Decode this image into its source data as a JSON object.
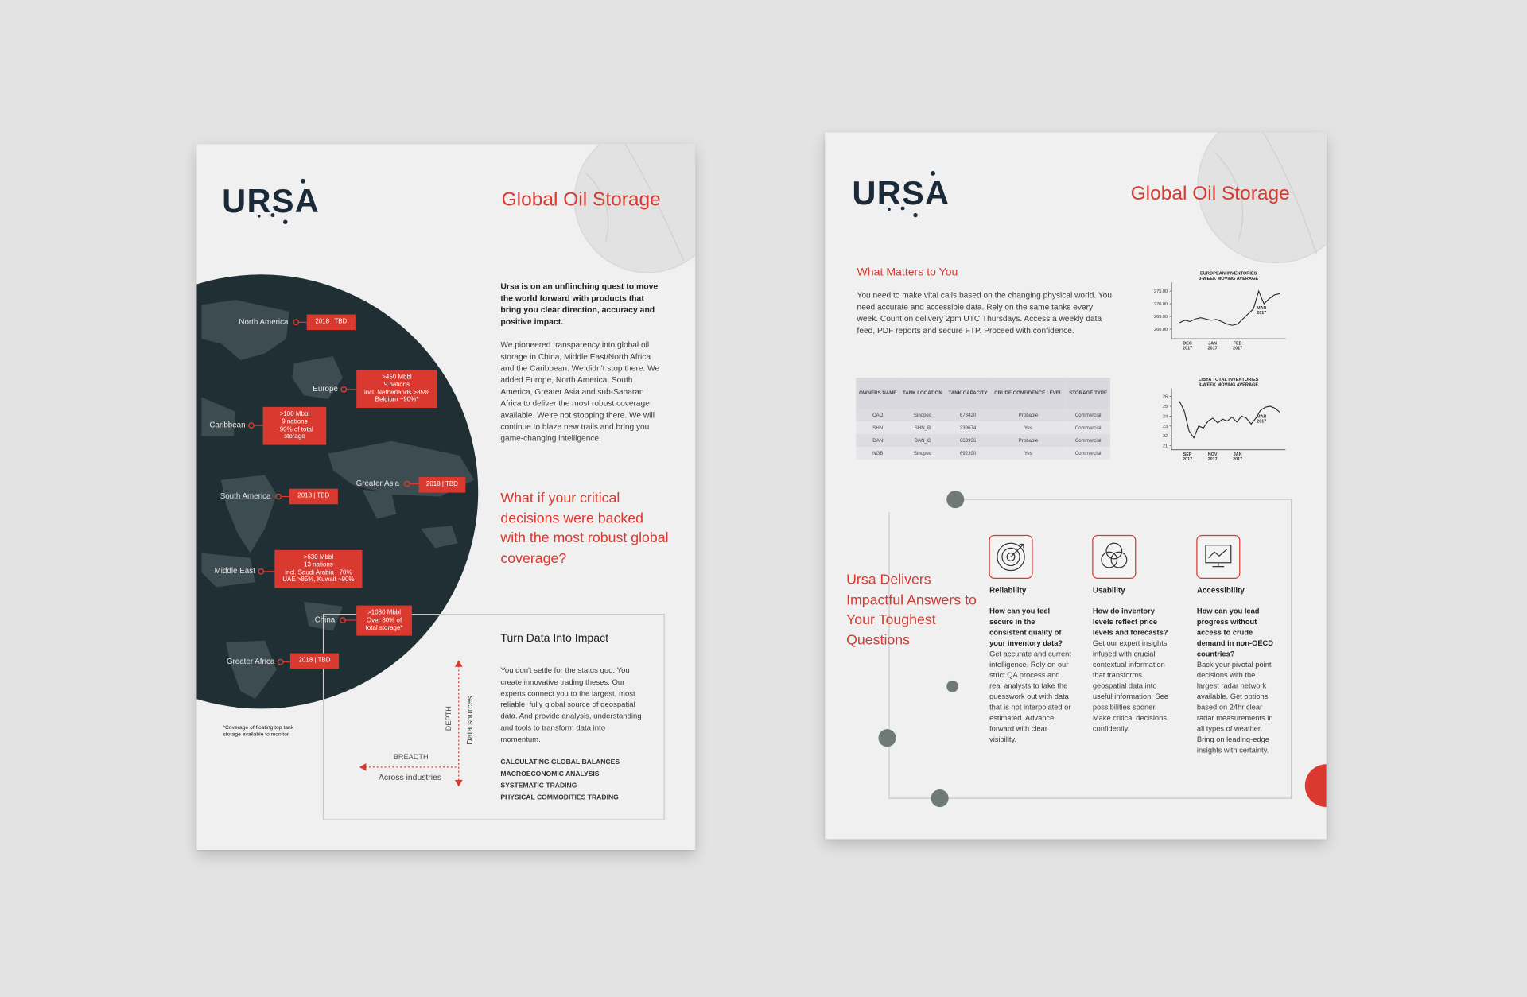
{
  "left_page": {
    "logo": "URSA",
    "title": "Global Oil Storage",
    "regions": [
      {
        "name": "North America",
        "details": [
          "2018 | TBD"
        ]
      },
      {
        "name": "Europe",
        "details": [
          ">450 Mbbl",
          "9 nations",
          "incl. Netherlands >85%",
          "Belgium ~90%*"
        ]
      },
      {
        "name": "Caribbean",
        "details": [
          ">100 Mbbl",
          "9 nations",
          "~90% of total",
          "storage"
        ]
      },
      {
        "name": "Greater Asia",
        "details": [
          "2018 | TBD"
        ]
      },
      {
        "name": "South America",
        "details": [
          "2018 | TBD"
        ]
      },
      {
        "name": "Middle East",
        "details": [
          ">630 Mbbl",
          "13 nations",
          "incl. Saudi Arabia ~70%",
          "UAE >85%, Kuwait ~90%"
        ]
      },
      {
        "name": "China",
        "details": [
          ">1080 Mbbl",
          "Over 80% of",
          "total storage*"
        ]
      },
      {
        "name": "Greater Africa",
        "details": [
          "2018 | TBD"
        ]
      }
    ],
    "footnote": "*Coverage of floating top tank storage available to monitor",
    "intro": "Ursa is on an unflinching quest to move the world forward with products that bring you clear direction, accuracy and positive impact.",
    "body": "We pioneered transparency into global oil storage in China, Middle East/North Africa and the Caribbean. We didn't stop there. We added Europe, North America, South America, Greater Asia and sub-Saharan Africa to deliver the most robust coverage available. We're not stopping there. We will continue to blaze new trails and bring you game-changing intelligence.",
    "question": "What if your critical decisions were backed with the most robust global coverage?",
    "impact": {
      "heading": "Turn Data Into Impact",
      "text": "You don't settle for the status quo. You create innovative trading theses. Our experts connect you to the largest, most reliable, fully global source of geospatial data. And provide analysis, understanding and tools to transform data into momentum.",
      "diagram": {
        "vertical_label": "DEPTH",
        "vertical_caption": "Data sources",
        "horizontal_label": "BREADTH",
        "horizontal_caption": "Across industries"
      },
      "uses": [
        "CALCULATING GLOBAL BALANCES",
        "MACROECONOMIC ANALYSIS",
        "SYSTEMATIC TRADING",
        "PHYSICAL COMMODITIES TRADING"
      ]
    }
  },
  "right_page": {
    "logo": "URSA",
    "title": "Global Oil Storage",
    "section_heading": "What Matters to You",
    "section_text": "You need to make vital calls based on the changing physical world. You need accurate and accessible data. Rely on the same tanks every week. Count on delivery 2pm UTC Thursdays. Access a weekly data feed, PDF reports and secure FTP. Proceed with confidence.",
    "table": {
      "header": [
        "OWNERS NAME",
        "TANK LOCATION",
        "TANK CAPACITY",
        "CRUDE CONFIDENCE LEVEL",
        "STORAGE TYPE"
      ],
      "rows": [
        [
          "CAO",
          "Sinopec",
          673420,
          "Probable",
          "Commercial"
        ],
        [
          "SHN",
          "SHN_B",
          339674,
          "Yes",
          "Commercial"
        ],
        [
          "DAN",
          "DAN_C",
          663936,
          "Probable",
          "Commercial"
        ],
        [
          "NGB",
          "Sinopec",
          692390,
          "Yes",
          "Commercial"
        ]
      ]
    },
    "charts": [
      {
        "type": "line",
        "title": [
          "EUROPEAN INVENTORIES",
          "3-WEEK MOVING AVERAGE"
        ],
        "ylim": [
          256.2,
          277.3
        ],
        "yticks": [
          {
            "value": 275,
            "label": "275.00"
          },
          {
            "value": 270,
            "label": "270.00"
          },
          {
            "value": 265,
            "label": "265.00"
          },
          {
            "value": 260,
            "label": "260.00"
          }
        ],
        "xlabels": [
          [
            "DEC",
            "2017"
          ],
          [
            "JAN",
            "2017"
          ],
          [
            "FEB",
            "2017"
          ]
        ],
        "annotation": [
          "MAR",
          "2017"
        ],
        "values": [
          262.5,
          263.5,
          263,
          264,
          264.5,
          264,
          263.5,
          263.8,
          263,
          262,
          261.5,
          262,
          264,
          266,
          268,
          275,
          270,
          272,
          273.5,
          274
        ]
      },
      {
        "type": "line",
        "title": [
          "LIBYA TOTAL INVENTORIES",
          "3-WEEK MOVING AVERAGE"
        ],
        "ylim": [
          20.6,
          26.5
        ],
        "yticks": [
          26,
          25,
          24,
          23,
          22,
          21
        ],
        "xlabels": [
          [
            "SEP",
            "2017"
          ],
          [
            "NOV",
            "2017"
          ],
          [
            "JAN",
            "2017"
          ]
        ],
        "annotation": [
          "MAR",
          "2017"
        ],
        "values": [
          25.5,
          24.5,
          22.5,
          21.8,
          23,
          22.8,
          23.5,
          23.8,
          23.3,
          23.7,
          23.5,
          23.9,
          23.4,
          24,
          23.8,
          23.2,
          23.8,
          24.6,
          24.9,
          25,
          24.8,
          24.4
        ]
      }
    ],
    "answers_heading": "Ursa Delivers Impactful Answers to Your Toughest Questions",
    "features": [
      {
        "title": "Reliability",
        "question": "How can you feel secure in the consistent quality of your inventory data?",
        "answer": "Get accurate and current intelligence. Rely on our strict QA process and real analysts to take the guesswork out with data that is not interpolated or estimated. Advance forward with clear visibility."
      },
      {
        "title": "Usability",
        "question": "How do inventory levels reflect price levels and forecasts?",
        "answer": "Get our expert insights infused with crucial contextual information that transforms geospatial data into useful information. See possibilities sooner. Make critical decisions confidently."
      },
      {
        "title": "Accessibility",
        "question": "How can you lead progress without access to crude demand in non-OECD countries?",
        "answer": "Back your pivotal point decisions with the largest radar network available. Get options based on 24hr clear radar measurements in all types of weather. Bring on leading-edge insights with certainty."
      }
    ]
  }
}
